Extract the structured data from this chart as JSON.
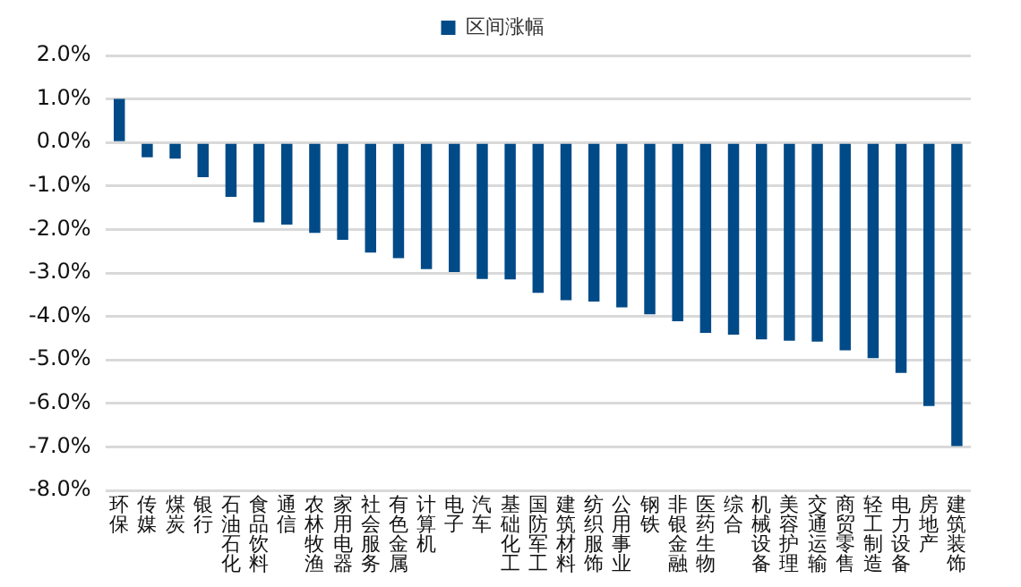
{
  "chart_data": {
    "type": "bar",
    "categories": [
      "环保",
      "传媒",
      "煤炭",
      "银行",
      "石油石化",
      "食品饮料",
      "通信",
      "农林牧渔",
      "家用电器",
      "社会服务",
      "有色金属",
      "计算机",
      "电子",
      "汽车",
      "基础化工",
      "国防军工",
      "建筑材料",
      "纺织服饰",
      "公用事业",
      "钢铁",
      "非银金融",
      "医药生物",
      "综合",
      "机械设备",
      "美容护理",
      "交通运输",
      "商贸零售",
      "轻工制造",
      "电力设备",
      "房地产",
      "建筑装饰"
    ],
    "series": [
      {
        "name": "区间涨幅",
        "color": "#004a87",
        "values": [
          1.0,
          -0.34,
          -0.37,
          -0.8,
          -1.25,
          -1.84,
          -1.89,
          -2.08,
          -2.24,
          -2.53,
          -2.66,
          -2.91,
          -2.98,
          -3.14,
          -3.15,
          -3.46,
          -3.63,
          -3.66,
          -3.79,
          -3.95,
          -4.11,
          -4.38,
          -4.42,
          -4.53,
          -4.56,
          -4.58,
          -4.78,
          -4.96,
          -5.3,
          -6.06,
          -6.98
        ]
      }
    ],
    "ylim": [
      -8,
      2
    ],
    "yticks": [
      {
        "value": -8,
        "label": "-8.0%"
      },
      {
        "value": -7,
        "label": "-7.0%"
      },
      {
        "value": -6,
        "label": "-6.0%"
      },
      {
        "value": -5,
        "label": "-5.0%"
      },
      {
        "value": -4,
        "label": "-4.0%"
      },
      {
        "value": -3,
        "label": "-3.0%"
      },
      {
        "value": -2,
        "label": "-2.0%"
      },
      {
        "value": -1,
        "label": "-1.0%"
      },
      {
        "value": 0,
        "label": "0.0%"
      },
      {
        "value": 1,
        "label": "1.0%"
      },
      {
        "value": 2,
        "label": "2.0%"
      }
    ],
    "grid": "y",
    "legend": "top"
  }
}
